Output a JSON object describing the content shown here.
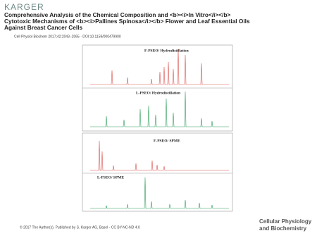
{
  "header": {
    "publisher": "KARGER",
    "title_lines": [
      "Comprehensive Analysis of the Chemical Composition and <b><i>In Vitro</i></b>",
      "Cytotoxic Mechanisms of <b><i>Pallines Spinosa</i></b> Flower and Leaf Essential Oils",
      "Against Breast Cancer Cells"
    ],
    "citation": "Cell Physiol Biochem 2017;42:2043–2065 ·  DOI:10.1159/000479900"
  },
  "figure": {
    "panels": [
      "F-PSEO/ Hydrodistillation",
      "L-PSEO/ Hydrodistillation",
      "F-PSEO/ SPME",
      "L-PSEO/ SPME"
    ]
  },
  "footer": {
    "copyright": "© 2017 The Author(s). Published by S. Karger AG, Basel - CC BY-NC-ND 4.0",
    "journal_lines": [
      "Cellular Physiology",
      "and Biochemistry"
    ]
  }
}
